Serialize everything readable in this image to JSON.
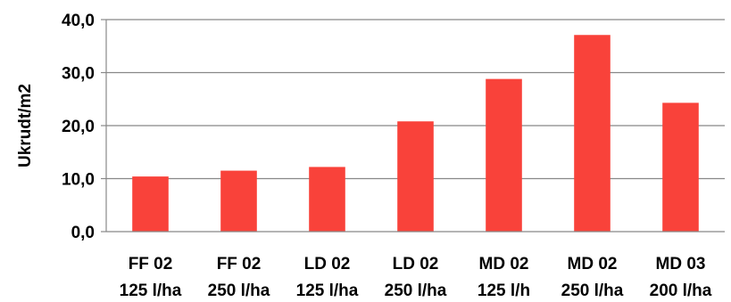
{
  "chart_data": {
    "type": "bar",
    "title": "",
    "xlabel": "",
    "ylabel": "Ukrudt/m2",
    "ylim": [
      0,
      40
    ],
    "yticks": [
      "0,0",
      "10,0",
      "20,0",
      "30,0",
      "40,0"
    ],
    "grid": true,
    "legend": "none",
    "categories": [
      [
        "FF 02",
        "125 l/ha"
      ],
      [
        "FF 02",
        "250 l/ha"
      ],
      [
        "LD 02",
        "125 l/ha"
      ],
      [
        "LD 02",
        "250 l/ha"
      ],
      [
        "MD 02",
        "125 l/h"
      ],
      [
        "MD 02",
        "250 l/ha"
      ],
      [
        "MD 03",
        "200 l/ha"
      ]
    ],
    "values": [
      10.4,
      11.5,
      12.2,
      20.8,
      28.8,
      37.1,
      24.3
    ],
    "bar_color": "#f9423a",
    "grid_color": "#888888"
  }
}
